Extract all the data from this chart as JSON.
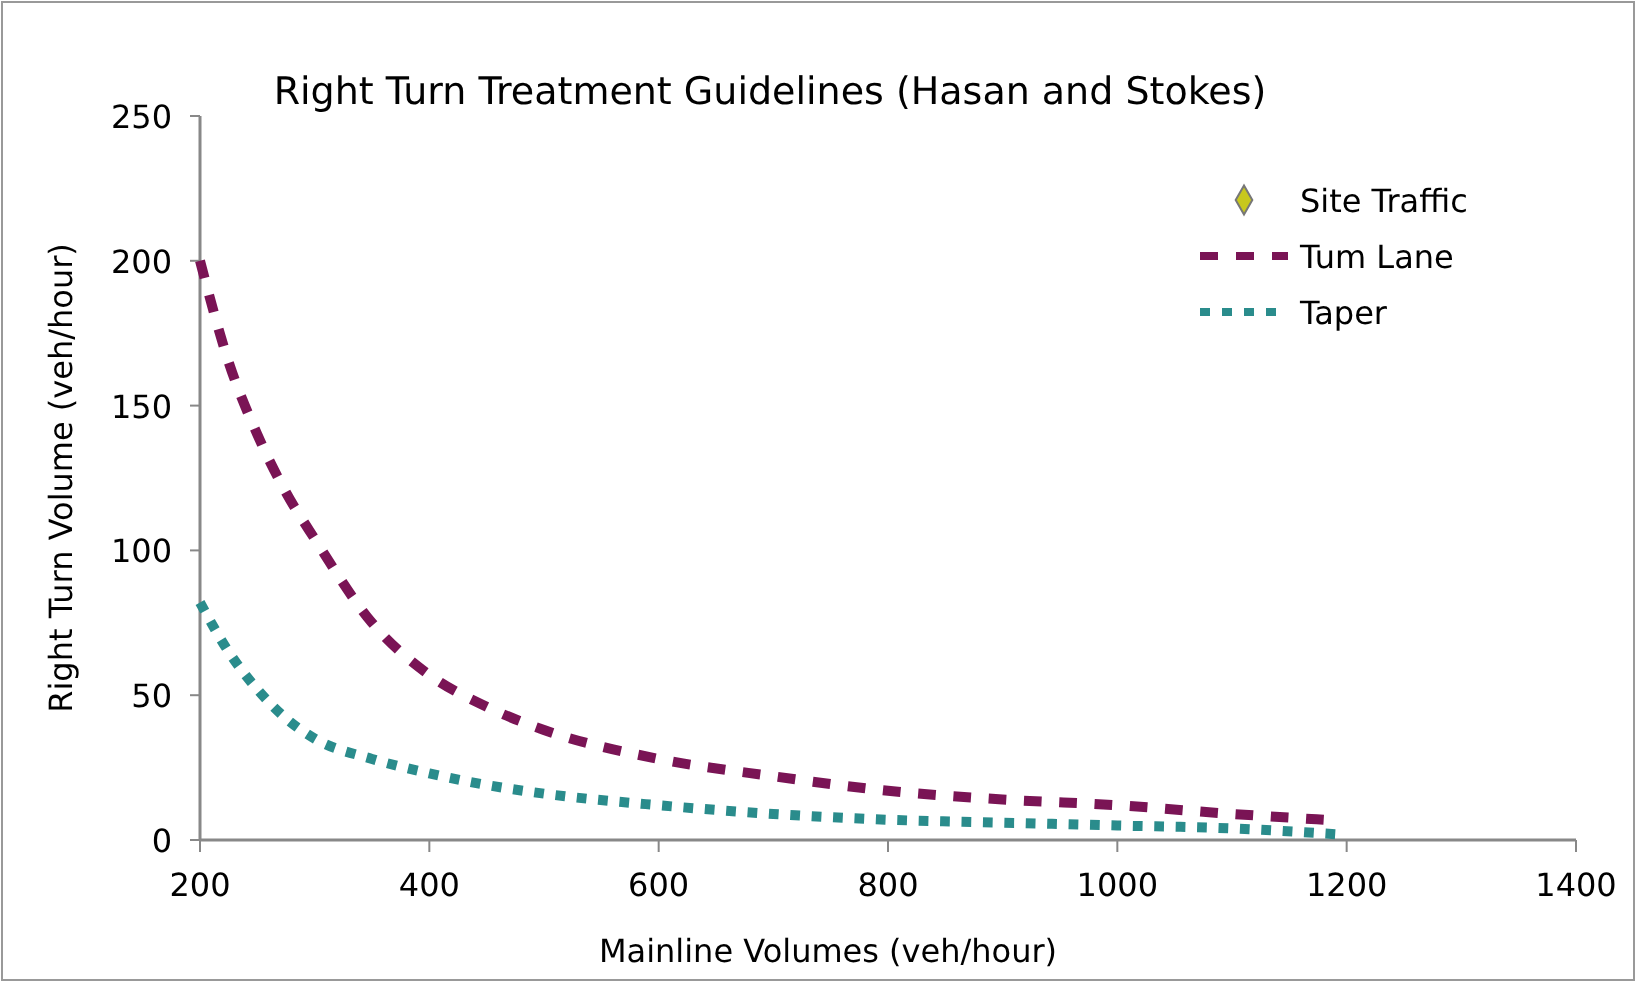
{
  "chart_data": {
    "type": "line",
    "title": "Right Turn Treatment Guidelines (Hasan and Stokes)",
    "xlabel": "Mainline Volumes (veh/hour)",
    "ylabel": "Right Turn Volume (veh/hour)",
    "xlim": [
      200,
      1400
    ],
    "xticks": [
      200,
      400,
      600,
      800,
      1000,
      1200,
      1400
    ],
    "ylim": [
      0,
      250
    ],
    "yticks": [
      0,
      50,
      100,
      150,
      200,
      250
    ],
    "grid": false,
    "legend": "top right",
    "series": [
      {
        "name": "Site Traffic",
        "type": "scatter",
        "marker": "diamond",
        "color": "#c8c81e"
      },
      {
        "name": "Tum Lane",
        "line_style": "dashed",
        "color": "#7a1455",
        "x": [
          200,
          225,
          250,
          275,
          300,
          350,
          400,
          450,
          500,
          600,
          700,
          800,
          900,
          1000,
          1100,
          1180
        ],
        "values": [
          200,
          165,
          140,
          120,
          104,
          75,
          57,
          46,
          38,
          28,
          22,
          17,
          14,
          12,
          9,
          7
        ]
      },
      {
        "name": "Taper",
        "line_style": "dotted",
        "color": "#2a8c8c",
        "x": [
          200,
          225,
          250,
          275,
          300,
          350,
          400,
          450,
          500,
          600,
          700,
          800,
          900,
          1000,
          1100,
          1190
        ],
        "values": [
          82,
          65,
          52,
          42,
          35,
          28,
          23,
          19,
          16,
          12,
          9,
          7,
          6,
          5,
          4,
          2
        ]
      }
    ]
  }
}
